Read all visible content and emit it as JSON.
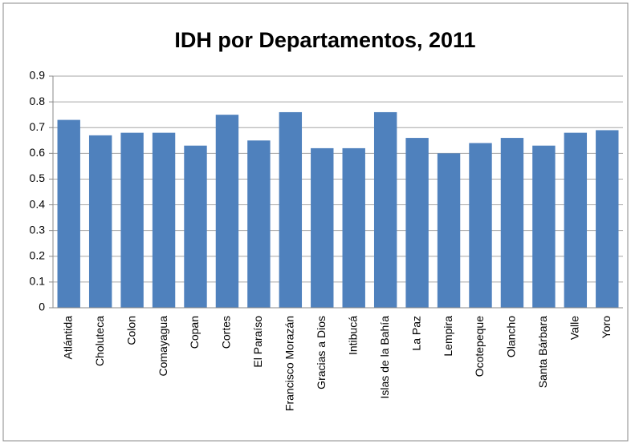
{
  "chart_data": {
    "type": "bar",
    "title": "IDH por Departamentos, 2011",
    "categories": [
      "Atlántida",
      "Choluteca",
      "Colon",
      "Comayagua",
      "Copan",
      "Cortes",
      "El Paraíso",
      "Francisco Morazán",
      "Gracias a Dios",
      "Intibucá",
      "Islas de la Bahía",
      "La Paz",
      "Lempira",
      "Ocotepeque",
      "Olancho",
      "Santa Bárbara",
      "Valle",
      "Yoro"
    ],
    "values": [
      0.73,
      0.67,
      0.68,
      0.68,
      0.63,
      0.75,
      0.65,
      0.76,
      0.62,
      0.62,
      0.76,
      0.66,
      0.6,
      0.64,
      0.66,
      0.63,
      0.68,
      0.69
    ],
    "color": "#4f81bd",
    "ylim": [
      0,
      0.9
    ],
    "yticks": [
      0,
      0.1,
      0.2,
      0.3,
      0.4,
      0.5,
      0.6,
      0.7,
      0.8,
      0.9
    ],
    "grid": true
  }
}
